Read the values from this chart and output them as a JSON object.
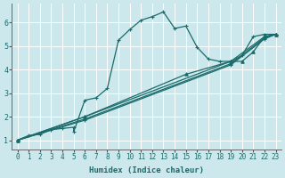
{
  "xlabel": "Humidex (Indice chaleur)",
  "bg_color": "#cce8ec",
  "line_color": "#1a6b6b",
  "grid_color": "#b8d8dc",
  "xlim": [
    -0.5,
    23.5
  ],
  "ylim": [
    0.6,
    6.8
  ],
  "xticks": [
    0,
    1,
    2,
    3,
    4,
    5,
    6,
    7,
    8,
    9,
    10,
    11,
    12,
    13,
    14,
    15,
    16,
    17,
    18,
    19,
    20,
    21,
    22,
    23
  ],
  "yticks": [
    1,
    2,
    3,
    4,
    5,
    6
  ],
  "curve_main_x": [
    0,
    1,
    2,
    3,
    4,
    5,
    5,
    6,
    7,
    8,
    9,
    10,
    11,
    12,
    13,
    14,
    15,
    16,
    17,
    18,
    19,
    20,
    21,
    22,
    23
  ],
  "curve_main_y": [
    1.0,
    1.2,
    1.25,
    1.45,
    1.5,
    1.55,
    1.35,
    2.7,
    2.8,
    3.2,
    5.25,
    5.7,
    6.1,
    6.25,
    6.45,
    5.75,
    5.85,
    4.95,
    4.45,
    4.35,
    4.35,
    4.6,
    5.4,
    5.5,
    5.5
  ],
  "line1_x": [
    0,
    6,
    19,
    22,
    23
  ],
  "line1_y": [
    1.0,
    2.0,
    4.35,
    5.4,
    5.5
  ],
  "line2_x": [
    0,
    6,
    19,
    22,
    23
  ],
  "line2_y": [
    1.0,
    1.9,
    4.25,
    5.35,
    5.5
  ],
  "line3_x": [
    0,
    6,
    19,
    22,
    23
  ],
  "line3_y": [
    1.0,
    1.85,
    4.2,
    5.3,
    5.5
  ],
  "line4_x": [
    0,
    6,
    15,
    19,
    20,
    21,
    22,
    23
  ],
  "line4_y": [
    1.0,
    2.0,
    3.8,
    4.35,
    4.35,
    4.75,
    5.4,
    5.5
  ]
}
